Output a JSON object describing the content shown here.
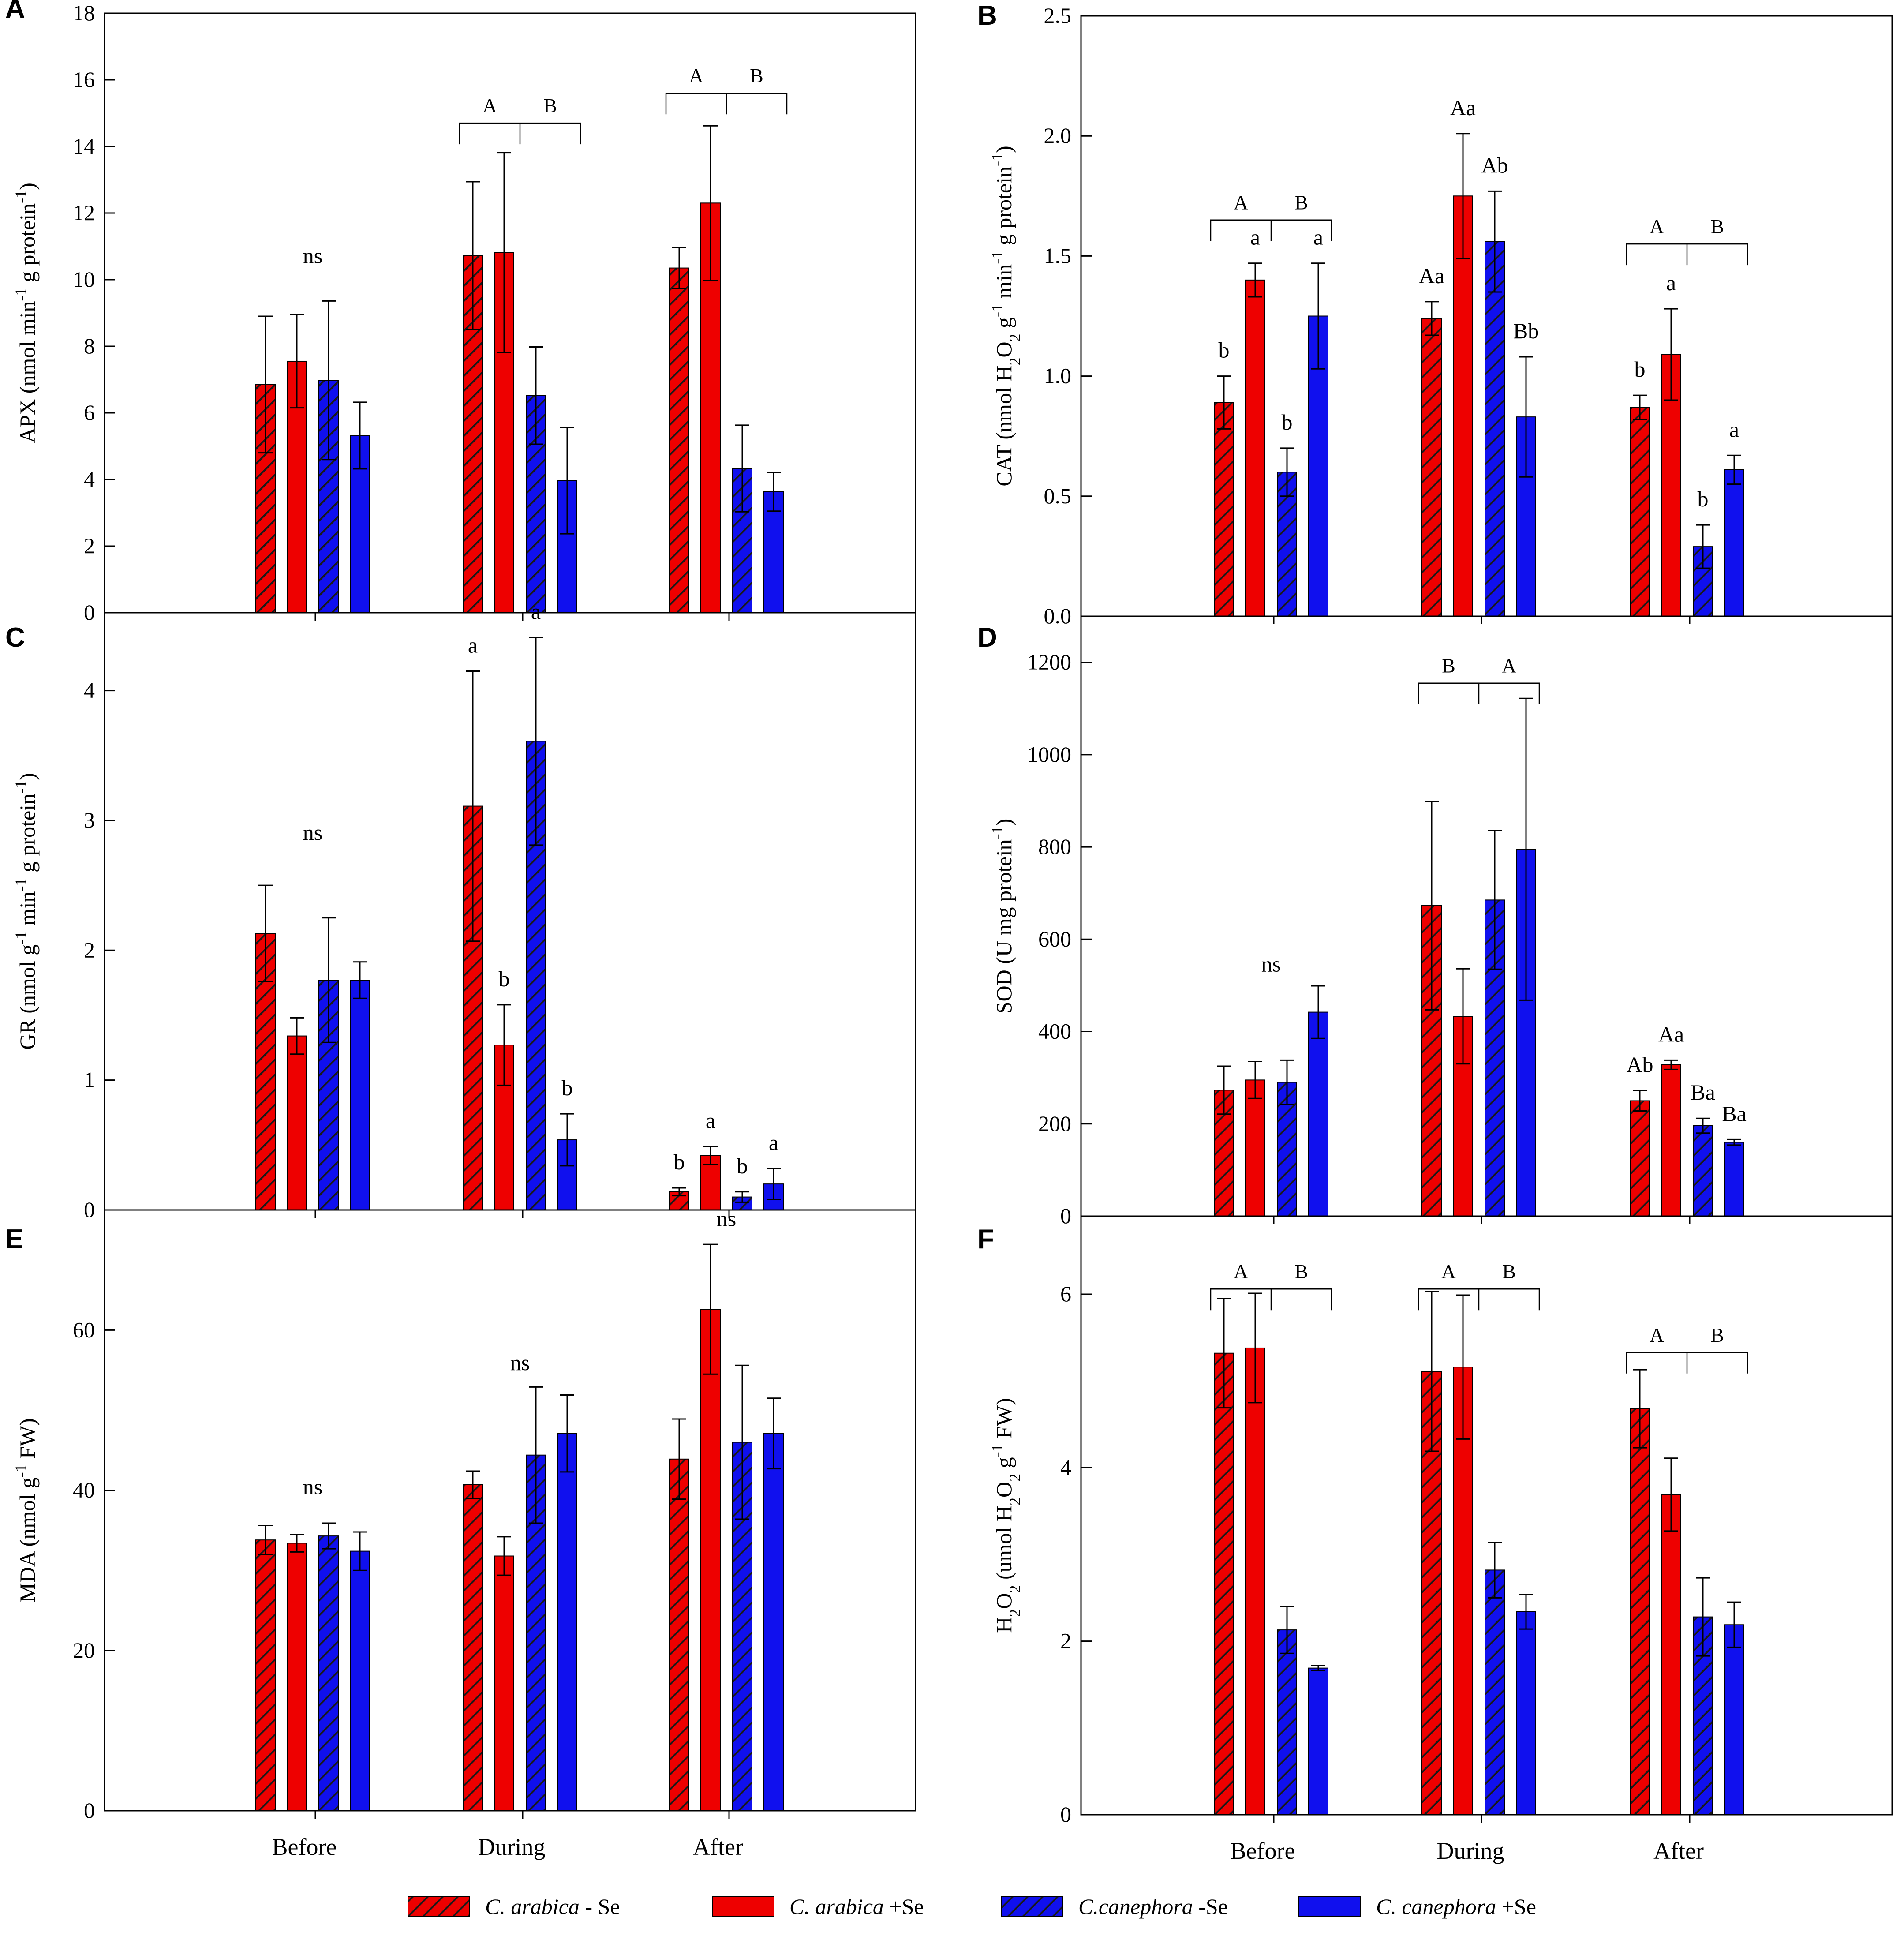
{
  "colors": {
    "arabica": "#ee0000",
    "canephora": "#1010ee",
    "axis": "#000000",
    "background": "#ffffff"
  },
  "legend": [
    {
      "species": "C. arabica",
      "suffix": " - Se",
      "hatched": true,
      "color": "#ee0000"
    },
    {
      "species": "C. arabica",
      "suffix": " +Se",
      "hatched": false,
      "color": "#ee0000"
    },
    {
      "species": "C.canephora",
      "suffix": " -Se",
      "hatched": true,
      "color": "#1010ee"
    },
    {
      "species": "C. canephora",
      "suffix": " +Se",
      "hatched": false,
      "color": "#1010ee"
    }
  ],
  "chart_data": [
    {
      "panel": "A",
      "type": "bar",
      "ylabel": "APX (nmol min-1 g protein-1)",
      "ylim": [
        0,
        18
      ],
      "yticks": [
        "0",
        "2",
        "4",
        "6",
        "8",
        "10",
        "12",
        "14",
        "16",
        "18"
      ],
      "categories": [
        "Before",
        "During",
        "After"
      ],
      "series": [
        {
          "name": "C. arabica - Se",
          "values": [
            6.85,
            10.72,
            10.35
          ],
          "errors": [
            2.05,
            2.22,
            0.62
          ]
        },
        {
          "name": "C. arabica +Se",
          "values": [
            7.55,
            10.82,
            12.3
          ],
          "errors": [
            1.4,
            3.0,
            2.32
          ]
        },
        {
          "name": "C.canephora -Se",
          "values": [
            6.98,
            6.52,
            4.33
          ],
          "errors": [
            2.38,
            1.46,
            1.3
          ]
        },
        {
          "name": "C. canephora +Se",
          "values": [
            5.32,
            3.97,
            3.63
          ],
          "errors": [
            1.0,
            1.6,
            0.58
          ]
        }
      ],
      "annotations": [
        {
          "cat": 0,
          "text": "ns",
          "y": 10.5
        }
      ],
      "brackets": [
        {
          "cat": 1,
          "y": 14.7,
          "left": "A",
          "right": "B"
        },
        {
          "cat": 2,
          "y": 15.6,
          "left": "A",
          "right": "B"
        }
      ]
    },
    {
      "panel": "B",
      "type": "bar",
      "ylabel": "CAT (nmol H2O2 g-1 min-1 g protein-1)",
      "ylim": [
        0,
        2.5
      ],
      "yticks": [
        "0.0",
        "0.5",
        "1.0",
        "1.5",
        "2.0",
        "2.5"
      ],
      "categories": [
        "Before",
        "During",
        "After"
      ],
      "series": [
        {
          "name": "C. arabica - Se",
          "values": [
            0.89,
            1.24,
            0.87
          ],
          "errors": [
            0.11,
            0.07,
            0.05
          ],
          "labels": [
            "b",
            "Aa",
            "b"
          ]
        },
        {
          "name": "C. arabica +Se",
          "values": [
            1.4,
            1.75,
            1.09
          ],
          "errors": [
            0.07,
            0.26,
            0.19
          ],
          "labels": [
            "a",
            "Aa",
            "a"
          ]
        },
        {
          "name": "C.canephora -Se",
          "values": [
            0.6,
            1.56,
            0.29
          ],
          "errors": [
            0.1,
            0.21,
            0.09
          ],
          "labels": [
            "b",
            "Ab",
            "b"
          ]
        },
        {
          "name": "C. canephora +Se",
          "values": [
            1.25,
            0.83,
            0.61
          ],
          "errors": [
            0.22,
            0.25,
            0.06
          ],
          "labels": [
            "a",
            "Bb",
            "a"
          ]
        }
      ],
      "brackets": [
        {
          "cat": 0,
          "y": 1.65,
          "left": "A",
          "right": "B"
        },
        {
          "cat": 2,
          "y": 1.55,
          "left": "A",
          "right": "B"
        }
      ]
    },
    {
      "panel": "C",
      "type": "bar",
      "ylabel": "GR (nmol g-1 min-1 g protein-1)",
      "ylim": [
        0,
        4.6
      ],
      "yticks": [
        "0",
        "1",
        "2",
        "3",
        "4"
      ],
      "categories": [
        "Before",
        "During",
        "After"
      ],
      "series": [
        {
          "name": "C. arabica - Se",
          "values": [
            2.13,
            3.11,
            0.14
          ],
          "errors": [
            0.37,
            1.04,
            0.03
          ],
          "labels": [
            null,
            "a",
            "b"
          ]
        },
        {
          "name": "C. arabica +Se",
          "values": [
            1.34,
            1.27,
            0.42
          ],
          "errors": [
            0.14,
            0.31,
            0.07
          ],
          "labels": [
            null,
            "b",
            "a"
          ]
        },
        {
          "name": "C.canephora -Se",
          "values": [
            1.77,
            3.61,
            0.1
          ],
          "errors": [
            0.48,
            0.8,
            0.04
          ],
          "labels": [
            null,
            "a",
            "b"
          ]
        },
        {
          "name": "C. canephora +Se",
          "values": [
            1.77,
            0.54,
            0.2
          ],
          "errors": [
            0.14,
            0.2,
            0.12
          ],
          "labels": [
            null,
            "b",
            "a"
          ]
        }
      ],
      "annotations": [
        {
          "cat": 0,
          "text": "ns",
          "y": 2.85
        }
      ]
    },
    {
      "panel": "D",
      "type": "bar",
      "ylabel": "SOD (U mg protein-1)",
      "ylim": [
        0,
        1300
      ],
      "yticks": [
        "0",
        "200",
        "400",
        "600",
        "800",
        "1000",
        "1200"
      ],
      "categories": [
        "Before",
        "During",
        "After"
      ],
      "series": [
        {
          "name": "C. arabica - Se",
          "values": [
            273,
            673,
            250
          ],
          "errors": [
            52,
            226,
            22
          ],
          "labels": [
            null,
            null,
            "Ab"
          ]
        },
        {
          "name": "C. arabica +Se",
          "values": [
            295,
            433,
            328
          ],
          "errors": [
            40,
            103,
            10
          ],
          "labels": [
            null,
            null,
            "Aa"
          ]
        },
        {
          "name": "C.canephora -Se",
          "values": [
            290,
            685,
            196
          ],
          "errors": [
            48,
            150,
            16
          ],
          "labels": [
            null,
            null,
            "Ba"
          ]
        },
        {
          "name": "C. canephora +Se",
          "values": [
            442,
            795,
            160
          ],
          "errors": [
            57,
            327,
            6
          ],
          "labels": [
            null,
            null,
            "Ba"
          ]
        }
      ],
      "annotations": [
        {
          "cat": 0,
          "text": "ns",
          "y": 530
        }
      ],
      "brackets": [
        {
          "cat": 1,
          "y": 1155,
          "left": "B",
          "right": "A"
        }
      ]
    },
    {
      "panel": "E",
      "type": "bar",
      "ylabel": "MDA (nmol g-1 FW)",
      "ylim": [
        0,
        75
      ],
      "yticks": [
        "0",
        "20",
        "40",
        "60"
      ],
      "categories": [
        "Before",
        "During",
        "After"
      ],
      "series": [
        {
          "name": "C. arabica - Se",
          "values": [
            33.8,
            40.7,
            43.9
          ],
          "errors": [
            1.8,
            1.7,
            5.0
          ]
        },
        {
          "name": "C. arabica +Se",
          "values": [
            33.4,
            31.8,
            62.6
          ],
          "errors": [
            1.1,
            2.4,
            8.1
          ]
        },
        {
          "name": "C.canephora -Se",
          "values": [
            34.3,
            44.4,
            46.0
          ],
          "errors": [
            1.6,
            8.5,
            9.6
          ]
        },
        {
          "name": "C. canephora +Se",
          "values": [
            32.4,
            47.1,
            47.1
          ],
          "errors": [
            2.4,
            4.8,
            4.4
          ]
        }
      ],
      "annotations": [
        {
          "cat": 0,
          "text": "ns",
          "y": 39.5
        },
        {
          "cat": 1,
          "text": "ns",
          "y": 55.0
        },
        {
          "cat": 2,
          "text": "ns",
          "y": 73.0
        }
      ]
    },
    {
      "panel": "F",
      "type": "bar",
      "ylabel": "H2O2 (umol H2O2 g-1 FW)",
      "ylim": [
        0,
        6.9
      ],
      "yticks": [
        "0",
        "2",
        "4",
        "6"
      ],
      "categories": [
        "Before",
        "During",
        "After"
      ],
      "xlabels_shown": true,
      "series": [
        {
          "name": "C. arabica - Se",
          "values": [
            5.32,
            5.11,
            4.68
          ],
          "errors": [
            0.63,
            0.92,
            0.45
          ]
        },
        {
          "name": "C. arabica +Se",
          "values": [
            5.38,
            5.16,
            3.69
          ],
          "errors": [
            0.63,
            0.83,
            0.42
          ]
        },
        {
          "name": "C.canephora -Se",
          "values": [
            2.13,
            2.82,
            2.28
          ],
          "errors": [
            0.27,
            0.32,
            0.45
          ]
        },
        {
          "name": "C. canephora +Se",
          "values": [
            1.69,
            2.34,
            2.19
          ],
          "errors": [
            0.03,
            0.2,
            0.26
          ]
        }
      ],
      "brackets": [
        {
          "cat": 0,
          "y": 6.06,
          "left": "A",
          "right": "B"
        },
        {
          "cat": 1,
          "y": 6.06,
          "left": "A",
          "right": "B"
        },
        {
          "cat": 2,
          "y": 5.33,
          "left": "A",
          "right": "B"
        }
      ]
    }
  ]
}
